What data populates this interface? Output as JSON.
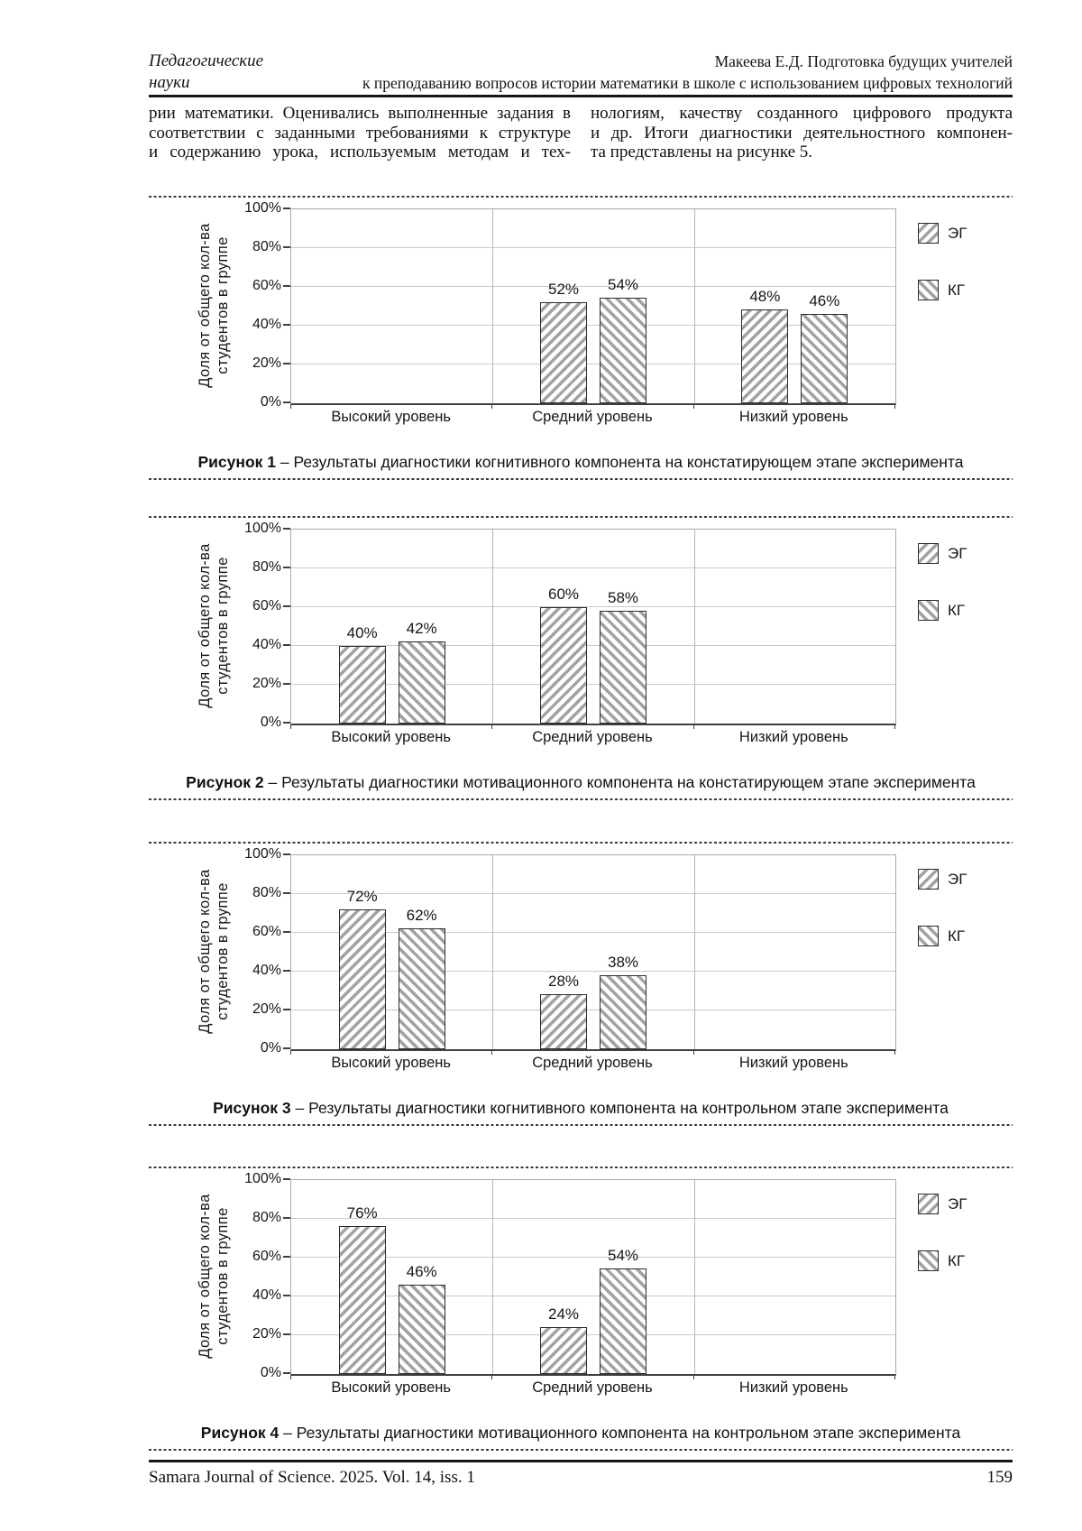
{
  "header": {
    "section_line1": "Педагогические",
    "section_line2": "науки",
    "article_line1": "Макеева Е.Д. Подготовка будущих учителей",
    "article_line2": "к преподаванию вопросов истории математики в школе с использованием цифровых технологий"
  },
  "body_text": {
    "left_column_lines": [
      "рии математики. Оценивались выполненные задания в",
      "соответствии с заданными требованиями к структуре",
      "и содержанию урока, используемым методам и тех-"
    ],
    "right_column_lines": [
      "нологиям, качеству созданного цифрового продукта",
      "и др. Итоги диагностики деятельностного компонен-",
      "та представлены на рисунке 5."
    ]
  },
  "chart_data": [
    {
      "type": "bar",
      "figure_label": "Рисунок 1",
      "caption": "– Результаты диагностики когнитивного компонента на констатирующем этапе эксперимента",
      "categories": [
        "Высокий уровень",
        "Средний уровень",
        "Низкий уровень"
      ],
      "series": [
        {
          "name": "ЭГ",
          "values": [
            0,
            52,
            48
          ]
        },
        {
          "name": "КГ",
          "values": [
            0,
            54,
            46
          ]
        }
      ],
      "ylabel_lines": [
        "Доля от общего кол-ва",
        "студентов в группе"
      ],
      "yticks": [
        "0%",
        "20%",
        "40%",
        "60%",
        "80%",
        "100%"
      ],
      "ylim": [
        0,
        100
      ],
      "grid": true,
      "legend_position": "right"
    },
    {
      "type": "bar",
      "figure_label": "Рисунок 2",
      "caption": "– Результаты диагностики мотивационного компонента на констатирующем этапе эксперимента",
      "categories": [
        "Высокий уровень",
        "Средний уровень",
        "Низкий уровень"
      ],
      "series": [
        {
          "name": "ЭГ",
          "values": [
            40,
            60,
            0
          ]
        },
        {
          "name": "КГ",
          "values": [
            42,
            58,
            0
          ]
        }
      ],
      "ylabel_lines": [
        "Доля от общего кол-ва",
        "студентов в группе"
      ],
      "yticks": [
        "0%",
        "20%",
        "40%",
        "60%",
        "80%",
        "100%"
      ],
      "ylim": [
        0,
        100
      ],
      "grid": true,
      "legend_position": "right"
    },
    {
      "type": "bar",
      "figure_label": "Рисунок 3",
      "caption": "– Результаты диагностики когнитивного компонента на контрольном этапе эксперимента",
      "categories": [
        "Высокий уровень",
        "Средний уровень",
        "Низкий уровень"
      ],
      "series": [
        {
          "name": "ЭГ",
          "values": [
            72,
            28,
            0
          ]
        },
        {
          "name": "КГ",
          "values": [
            62,
            38,
            0
          ]
        }
      ],
      "ylabel_lines": [
        "Доля от общего кол-ва",
        "студентов в группе"
      ],
      "yticks": [
        "0%",
        "20%",
        "40%",
        "60%",
        "80%",
        "100%"
      ],
      "ylim": [
        0,
        100
      ],
      "grid": true,
      "legend_position": "right"
    },
    {
      "type": "bar",
      "figure_label": "Рисунок 4",
      "caption": "– Результаты диагностики мотивационного компонента на контрольном этапе эксперимента",
      "categories": [
        "Высокий уровень",
        "Средний уровень",
        "Низкий уровень"
      ],
      "series": [
        {
          "name": "ЭГ",
          "values": [
            76,
            24,
            0
          ]
        },
        {
          "name": "КГ",
          "values": [
            46,
            54,
            0
          ]
        }
      ],
      "ylabel_lines": [
        "Доля от общего кол-ва",
        "студентов в группе"
      ],
      "yticks": [
        "0%",
        "20%",
        "40%",
        "60%",
        "80%",
        "100%"
      ],
      "ylim": [
        0,
        100
      ],
      "grid": true,
      "legend_position": "right"
    }
  ],
  "footer": {
    "journal_info": "Samara Journal of Science. 2025. Vol. 14, iss. 1",
    "page_number": "159"
  },
  "colors": {
    "text": "#141414",
    "hatch": "#a2a2a2",
    "bar_border": "#2b2b2b",
    "grid": "#c9c9c9",
    "axis": "#3f3f3f",
    "plot_border": "#a9a9a9"
  }
}
